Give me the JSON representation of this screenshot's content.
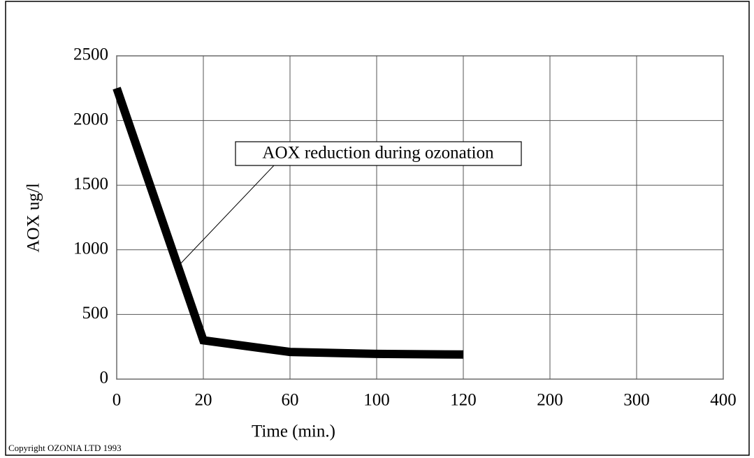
{
  "chart_data": {
    "type": "line",
    "x_label": "Time (min.)",
    "y_label": "AOX ug/l",
    "categories": [
      "0",
      "20",
      "60",
      "100",
      "120",
      "200",
      "300",
      "400"
    ],
    "series": [
      {
        "name": "AOX reduction during ozonation",
        "color": "#000000",
        "values": [
          2250,
          300,
          210,
          195,
          190,
          null,
          null,
          null
        ]
      }
    ],
    "ylim": [
      0,
      2500
    ],
    "yticks": [
      0,
      500,
      1000,
      1500,
      2000,
      2500
    ],
    "grid": true,
    "footer": "Copyright OZONIA LTD 1993"
  }
}
